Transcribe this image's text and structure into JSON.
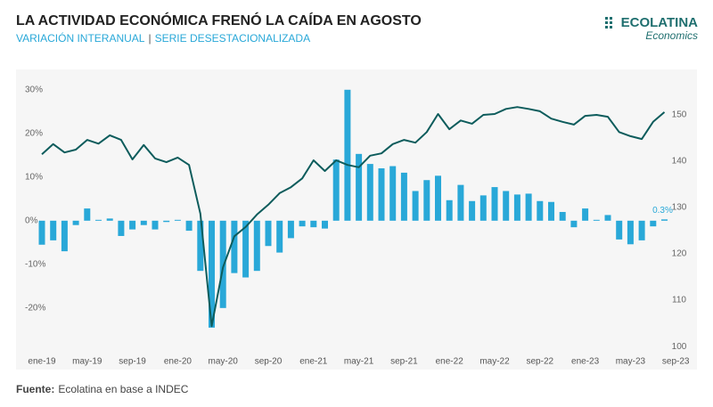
{
  "chart_data": {
    "type": "bar_line",
    "title": "LA ACTIVIDAD ECONÓMICA FRENÓ LA CAÍDA EN AGOSTO",
    "subtitle": [
      "VARIACIÓN INTERANUAL",
      "SERIE DESESTACIONALIZADA"
    ],
    "brand": {
      "name": "ECOLATINA",
      "tagline": "Economics"
    },
    "source": {
      "label": "Fuente:",
      "text": "Ecolatina en base a INDEC"
    },
    "categories": [
      "ene-19",
      null,
      null,
      null,
      "may-19",
      null,
      null,
      null,
      "sep-19",
      null,
      null,
      null,
      "ene-20",
      null,
      null,
      null,
      "may-20",
      null,
      null,
      null,
      "sep-20",
      null,
      null,
      null,
      "ene-21",
      null,
      null,
      null,
      "may-21",
      null,
      null,
      null,
      "sep-21",
      null,
      null,
      null,
      "ene-22",
      null,
      null,
      null,
      "may-22",
      null,
      null,
      null,
      "sep-22",
      null,
      null,
      null,
      "ene-23",
      null,
      null,
      null,
      "may-23",
      null,
      null,
      null,
      "sep-23"
    ],
    "series": [
      {
        "type": "bar",
        "color": "#29a8d8",
        "values": [
          -5.5,
          -4.5,
          -7,
          -1,
          2.8,
          0.2,
          0.5,
          -3.5,
          -2,
          -1,
          -2,
          -0.3,
          0.2,
          -2.3,
          -11.5,
          -24.5,
          -20,
          -12,
          -13,
          -11.5,
          -5.8,
          -7.3,
          -4,
          -1.3,
          -1.5,
          -1.8,
          14,
          30,
          15.3,
          13,
          12,
          12.5,
          11,
          6.8,
          9.3,
          10.3,
          4.7,
          8.2,
          4.5,
          5.8,
          7.7,
          6.8,
          6,
          6.2,
          4.5,
          4.3,
          2,
          -1.5,
          2.8,
          0.2,
          1.3,
          -4.3,
          -5.4,
          -4.5,
          -1.3,
          0.3,
          null
        ],
        "value_labels": [
          null,
          null,
          null,
          null,
          null,
          null,
          null,
          null,
          null,
          null,
          null,
          null,
          null,
          null,
          null,
          null,
          null,
          null,
          null,
          null,
          null,
          null,
          null,
          null,
          null,
          null,
          null,
          null,
          null,
          null,
          null,
          null,
          null,
          null,
          null,
          null,
          null,
          null,
          null,
          null,
          null,
          null,
          null,
          null,
          null,
          null,
          null,
          null,
          null,
          null,
          null,
          null,
          null,
          null,
          null,
          "0.3%",
          null
        ]
      },
      {
        "type": "line",
        "axis": "y2",
        "color": "#0d5c5c",
        "values": [
          141.5,
          143.7,
          141.9,
          142.5,
          144.6,
          143.8,
          145.6,
          144.6,
          140.4,
          143.5,
          140.6,
          139.8,
          140.8,
          139.2,
          128.7,
          104.4,
          117.1,
          123.8,
          125.8,
          128.5,
          130.6,
          133.1,
          134.4,
          136.3,
          140.2,
          137.9,
          140.2,
          139.2,
          138.7,
          141.2,
          141.7,
          143.7,
          144.6,
          144,
          146.3,
          150.2,
          146.9,
          148.8,
          148.1,
          150,
          150.2,
          151.3,
          151.7,
          151.3,
          150.8,
          149.2,
          148.5,
          147.9,
          149.8,
          150,
          149.6,
          146.3,
          145.4,
          144.8,
          148.5,
          150.6,
          null
        ]
      }
    ],
    "ylim": [
      -33.5,
      32.2
    ],
    "yticks": [
      {
        "value": -20,
        "label": "-20%"
      },
      {
        "value": -10,
        "label": "-10%"
      },
      {
        "value": 0,
        "label": "0%"
      },
      {
        "value": 10,
        "label": "10%"
      },
      {
        "value": 20,
        "label": "20%"
      },
      {
        "value": 30,
        "label": "30%"
      }
    ],
    "y2lim": [
      95.6,
      157.5
    ],
    "y2ticks": [
      100,
      110,
      120,
      130,
      140,
      150
    ]
  }
}
